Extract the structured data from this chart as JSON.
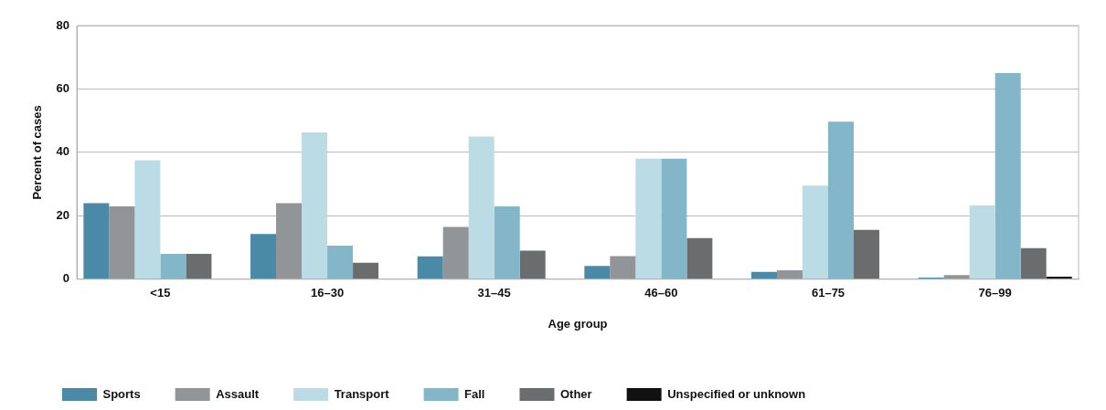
{
  "chart_data": {
    "type": "bar",
    "xlabel": "Age group",
    "ylabel": "Percent of cases",
    "categories": [
      "<15",
      "16–30",
      "31–45",
      "46–60",
      "61–75",
      "76–99"
    ],
    "series": [
      {
        "name": "Sports",
        "color": "#4a8aa6",
        "values": [
          24,
          14.3,
          7.2,
          4.2,
          2.3,
          0.5
        ]
      },
      {
        "name": "Assault",
        "color": "#929597",
        "values": [
          23,
          24,
          16.5,
          7.3,
          2.8,
          1.3
        ]
      },
      {
        "name": "Transport",
        "color": "#bbdce5",
        "values": [
          37.5,
          46.3,
          45,
          38,
          29.5,
          23.3
        ]
      },
      {
        "name": "Fall",
        "color": "#82b6c8",
        "values": [
          8,
          10.6,
          23,
          38,
          49.7,
          65
        ]
      },
      {
        "name": "Other",
        "color": "#6a6c6e",
        "values": [
          8,
          5.2,
          9,
          13,
          15.6,
          9.8
        ]
      },
      {
        "name": "Unspecified or unknown",
        "color": "#111111",
        "values": [
          null,
          null,
          null,
          null,
          null,
          0.8
        ]
      }
    ],
    "ylim": [
      0,
      80
    ],
    "yticks": [
      0,
      20,
      40,
      60,
      80
    ],
    "grid": "y",
    "legend": "bottom"
  }
}
